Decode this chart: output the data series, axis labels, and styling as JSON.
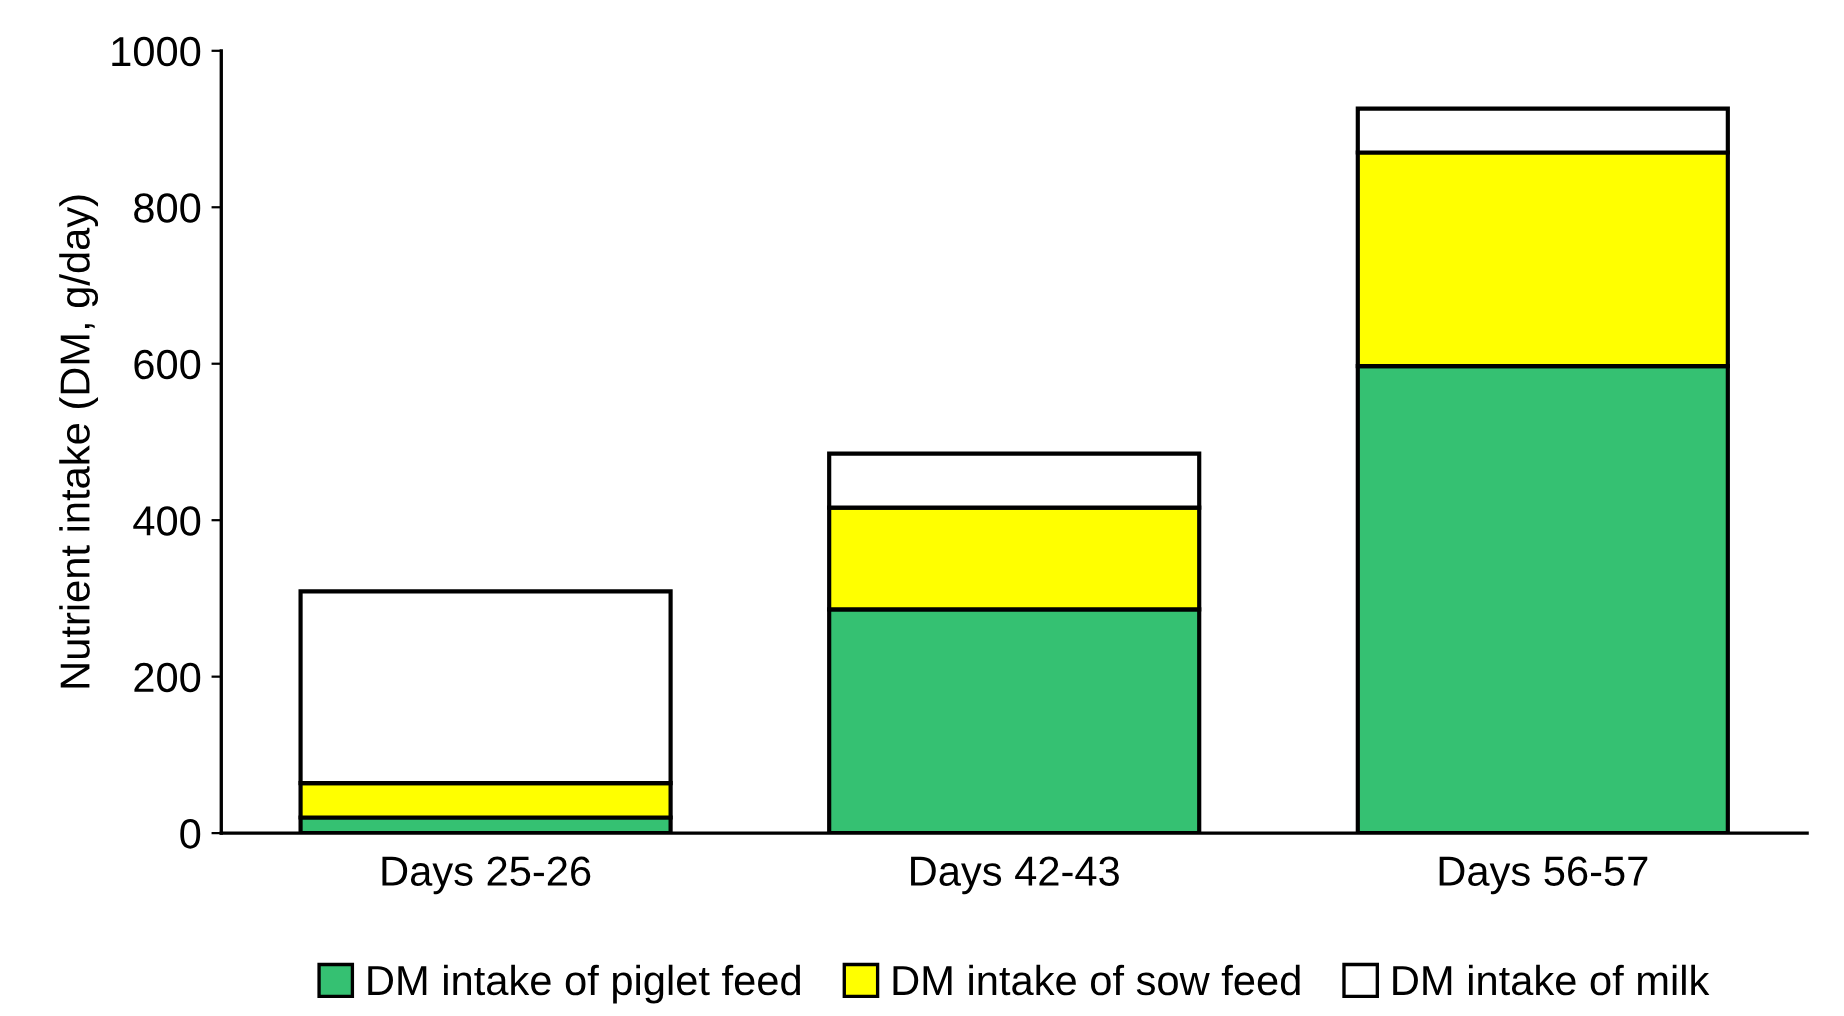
{
  "chart_data": {
    "type": "bar",
    "stacked": true,
    "ylabel": "Nutrient intake (DM, g/day)",
    "categories": [
      "Days 25-26",
      "Days 42-43",
      "Days 56-57"
    ],
    "series": [
      {
        "name": "DM intake of piglet feed",
        "color": "#35c172",
        "values": [
          20,
          286,
          597
        ]
      },
      {
        "name": "DM intake of sow feed",
        "color": "#ffff00",
        "values": [
          44,
          130,
          273
        ]
      },
      {
        "name": "DM intake of milk",
        "color": "#ffffff",
        "values": [
          245,
          69,
          56
        ]
      }
    ],
    "ylim": [
      0,
      1000
    ],
    "yticks": [
      0,
      200,
      400,
      600,
      800,
      1000
    ],
    "grid": false,
    "legend": "bottom"
  }
}
